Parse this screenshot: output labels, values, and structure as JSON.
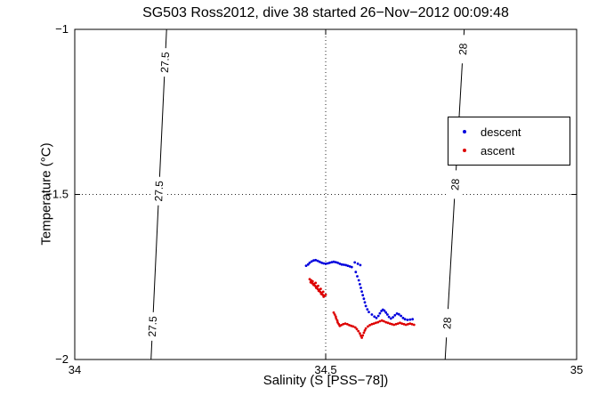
{
  "chart_data": {
    "type": "scatter",
    "title": "SG503 Ross2012, dive 38 started 26−Nov−2012 00:09:48",
    "xlabel": "Salinity (S [PSS−78])",
    "ylabel": "Temperature (°C)",
    "xlim": [
      34,
      35
    ],
    "ylim": [
      -2,
      -1
    ],
    "xticks": [
      34,
      34.5,
      35
    ],
    "yticks": [
      -2,
      -1.5,
      -1
    ],
    "xtick_labels": [
      "34",
      "34.5",
      "35"
    ],
    "ytick_labels": [
      "−2",
      "−1.5",
      "−1"
    ],
    "grid": "dotted",
    "legend": {
      "position": "upper-right-inside",
      "entries": [
        {
          "label": "descent",
          "color": "#0000dd"
        },
        {
          "label": "ascent",
          "color": "#dd0000"
        }
      ]
    },
    "contours": [
      {
        "label": "27.5",
        "s_at_tmin": 34.152,
        "s_at_tmax": 34.183,
        "label_t": [
          -1.1,
          -1.49,
          -1.9
        ]
      },
      {
        "label": "28",
        "s_at_tmin": 34.738,
        "s_at_tmax": 34.776,
        "label_t": [
          -1.06,
          -1.47,
          -1.89
        ]
      }
    ],
    "series": [
      {
        "name": "descent",
        "color": "#0000dd",
        "points": [
          [
            34.461,
            -1.716
          ],
          [
            34.465,
            -1.712
          ],
          [
            34.468,
            -1.707
          ],
          [
            34.472,
            -1.703
          ],
          [
            34.476,
            -1.7
          ],
          [
            34.48,
            -1.699
          ],
          [
            34.484,
            -1.701
          ],
          [
            34.488,
            -1.704
          ],
          [
            34.492,
            -1.707
          ],
          [
            34.496,
            -1.709
          ],
          [
            34.5,
            -1.71
          ],
          [
            34.504,
            -1.709
          ],
          [
            34.508,
            -1.707
          ],
          [
            34.512,
            -1.705
          ],
          [
            34.516,
            -1.704
          ],
          [
            34.52,
            -1.705
          ],
          [
            34.524,
            -1.707
          ],
          [
            34.528,
            -1.71
          ],
          [
            34.532,
            -1.712
          ],
          [
            34.536,
            -1.713
          ],
          [
            34.54,
            -1.714
          ],
          [
            34.544,
            -1.716
          ],
          [
            34.548,
            -1.718
          ],
          [
            34.552,
            -1.72
          ],
          [
            34.558,
            -1.706
          ],
          [
            34.564,
            -1.71
          ],
          [
            34.569,
            -1.714
          ],
          [
            34.56,
            -1.735
          ],
          [
            34.563,
            -1.748
          ],
          [
            34.566,
            -1.76
          ],
          [
            34.568,
            -1.772
          ],
          [
            34.57,
            -1.783
          ],
          [
            34.572,
            -1.794
          ],
          [
            34.574,
            -1.805
          ],
          [
            34.576,
            -1.816
          ],
          [
            34.578,
            -1.827
          ],
          [
            34.58,
            -1.838
          ],
          [
            34.583,
            -1.848
          ],
          [
            34.586,
            -1.856
          ],
          [
            34.592,
            -1.864
          ],
          [
            34.597,
            -1.87
          ],
          [
            34.601,
            -1.874
          ],
          [
            34.605,
            -1.868
          ],
          [
            34.608,
            -1.86
          ],
          [
            34.611,
            -1.853
          ],
          [
            34.614,
            -1.849
          ],
          [
            34.617,
            -1.852
          ],
          [
            34.62,
            -1.858
          ],
          [
            34.623,
            -1.864
          ],
          [
            34.626,
            -1.871
          ],
          [
            34.63,
            -1.876
          ],
          [
            34.634,
            -1.872
          ],
          [
            34.638,
            -1.866
          ],
          [
            34.642,
            -1.861
          ],
          [
            34.646,
            -1.863
          ],
          [
            34.65,
            -1.868
          ],
          [
            34.654,
            -1.874
          ],
          [
            34.658,
            -1.878
          ],
          [
            34.663,
            -1.88
          ],
          [
            34.668,
            -1.879
          ],
          [
            34.673,
            -1.878
          ]
        ]
      },
      {
        "name": "ascent",
        "color": "#dd0000",
        "points": [
          [
            34.468,
            -1.757
          ],
          [
            34.471,
            -1.76
          ],
          [
            34.474,
            -1.763
          ],
          [
            34.47,
            -1.766
          ],
          [
            34.473,
            -1.769
          ],
          [
            34.477,
            -1.771
          ],
          [
            34.48,
            -1.768
          ],
          [
            34.476,
            -1.774
          ],
          [
            34.479,
            -1.777
          ],
          [
            34.482,
            -1.78
          ],
          [
            34.485,
            -1.777
          ],
          [
            34.481,
            -1.783
          ],
          [
            34.484,
            -1.786
          ],
          [
            34.487,
            -1.789
          ],
          [
            34.49,
            -1.786
          ],
          [
            34.486,
            -1.792
          ],
          [
            34.489,
            -1.795
          ],
          [
            34.492,
            -1.798
          ],
          [
            34.495,
            -1.795
          ],
          [
            34.491,
            -1.801
          ],
          [
            34.494,
            -1.804
          ],
          [
            34.497,
            -1.807
          ],
          [
            34.5,
            -1.804
          ],
          [
            34.496,
            -1.81
          ],
          [
            34.516,
            -1.858
          ],
          [
            34.518,
            -1.864
          ],
          [
            34.52,
            -1.87
          ],
          [
            34.521,
            -1.876
          ],
          [
            34.523,
            -1.882
          ],
          [
            34.524,
            -1.888
          ],
          [
            34.526,
            -1.893
          ],
          [
            34.528,
            -1.898
          ],
          [
            34.531,
            -1.896
          ],
          [
            34.535,
            -1.893
          ],
          [
            34.539,
            -1.891
          ],
          [
            34.543,
            -1.893
          ],
          [
            34.547,
            -1.896
          ],
          [
            34.551,
            -1.898
          ],
          [
            34.555,
            -1.9
          ],
          [
            34.559,
            -1.903
          ],
          [
            34.562,
            -1.908
          ],
          [
            34.565,
            -1.914
          ],
          [
            34.568,
            -1.921
          ],
          [
            34.57,
            -1.928
          ],
          [
            34.572,
            -1.934
          ],
          [
            34.574,
            -1.927
          ],
          [
            34.576,
            -1.919
          ],
          [
            34.578,
            -1.912
          ],
          [
            34.58,
            -1.906
          ],
          [
            34.584,
            -1.9
          ],
          [
            34.588,
            -1.896
          ],
          [
            34.592,
            -1.893
          ],
          [
            34.596,
            -1.891
          ],
          [
            34.6,
            -1.889
          ],
          [
            34.604,
            -1.887
          ],
          [
            34.608,
            -1.884
          ],
          [
            34.612,
            -1.882
          ],
          [
            34.616,
            -1.884
          ],
          [
            34.62,
            -1.887
          ],
          [
            34.624,
            -1.889
          ],
          [
            34.628,
            -1.891
          ],
          [
            34.632,
            -1.893
          ],
          [
            34.636,
            -1.895
          ],
          [
            34.64,
            -1.893
          ],
          [
            34.644,
            -1.891
          ],
          [
            34.648,
            -1.889
          ],
          [
            34.652,
            -1.891
          ],
          [
            34.656,
            -1.893
          ],
          [
            34.66,
            -1.895
          ],
          [
            34.664,
            -1.893
          ],
          [
            34.668,
            -1.891
          ],
          [
            34.672,
            -1.893
          ],
          [
            34.676,
            -1.895
          ]
        ]
      }
    ]
  }
}
